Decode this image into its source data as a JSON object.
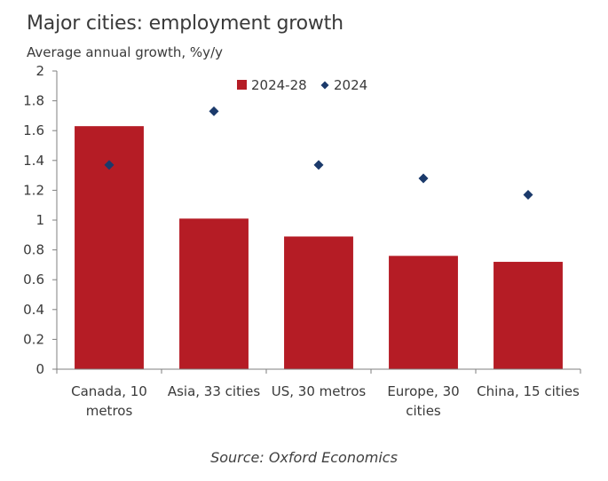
{
  "title": "Major cities: employment growth",
  "subtitle": "Average annual growth, %y/y",
  "source": "Source: Oxford Economics",
  "colors": {
    "bar": "#b51c25",
    "marker": "#1b3a6b",
    "axis": "#7f7f7f",
    "text": "#3a3a3a"
  },
  "chart_data": {
    "type": "bar",
    "categories": [
      [
        "Canada, 10",
        "metros"
      ],
      [
        "Asia, 33 cities"
      ],
      [
        "US, 30 metros"
      ],
      [
        "Europe, 30",
        "cities"
      ],
      [
        "China, 15 cities"
      ]
    ],
    "series": [
      {
        "name": "2024-28",
        "kind": "bar",
        "values": [
          1.63,
          1.01,
          0.89,
          0.76,
          0.72
        ]
      },
      {
        "name": "2024",
        "kind": "marker-diamond",
        "values": [
          1.37,
          1.73,
          1.37,
          1.28,
          1.17
        ]
      }
    ],
    "ylim": [
      0,
      2
    ],
    "yticks": [
      "0",
      "0.2",
      "0.4",
      "0.6",
      "0.8",
      "1",
      "1.2",
      "1.4",
      "1.6",
      "1.8",
      "2"
    ],
    "grid": false,
    "legend_position": "top-right"
  }
}
